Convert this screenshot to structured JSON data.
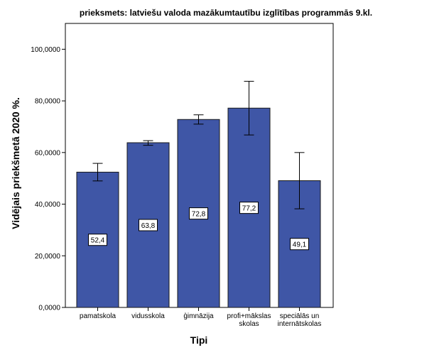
{
  "chart_data": {
    "type": "bar",
    "title": "prieksmets: latviešu valoda mazākumtautību izglītības programmās 9.kl.",
    "xlabel": "Tipi",
    "ylabel": "Vidējais priekšmetā 2020 %.",
    "categories": [
      [
        "pamatskola"
      ],
      [
        "vidusskola"
      ],
      [
        "ģimnāzija"
      ],
      [
        "profi+mākslas",
        "skolas"
      ],
      [
        "speciālās un",
        "internātskolas"
      ]
    ],
    "values": [
      52.4,
      63.8,
      72.8,
      77.2,
      49.1
    ],
    "data_labels": [
      "52,4",
      "63,8",
      "72,8",
      "77,2",
      "49,1"
    ],
    "error_bars": [
      {
        "low": 49.0,
        "high": 55.8
      },
      {
        "low": 62.8,
        "high": 64.6
      },
      {
        "low": 71.0,
        "high": 74.6
      },
      {
        "low": 66.8,
        "high": 87.6
      },
      {
        "low": 38.2,
        "high": 60.0
      }
    ],
    "ylim": [
      0,
      110
    ],
    "yticks": [
      0,
      20,
      40,
      60,
      80,
      100
    ],
    "ytick_labels": [
      "0,0000",
      "20,0000",
      "40,0000",
      "60,0000",
      "80,0000",
      "100,0000"
    ],
    "grid": false,
    "colors": {
      "bar": "#3f56a6",
      "bar_edge": "#1a1a1a",
      "axis": "#000000"
    }
  }
}
